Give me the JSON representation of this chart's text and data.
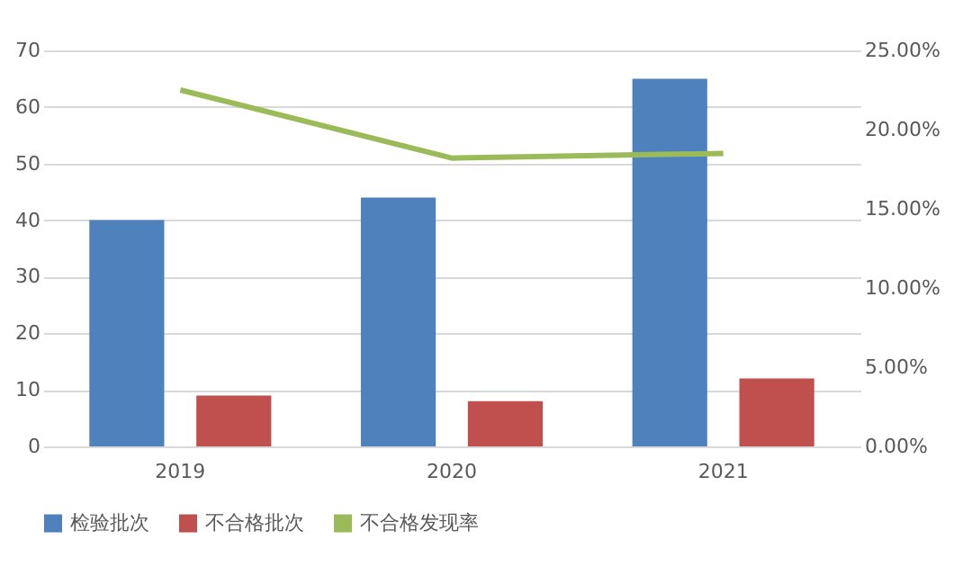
{
  "chart_data": {
    "type": "bar",
    "categories": [
      "2019",
      "2020",
      "2021"
    ],
    "series": [
      {
        "name": "检验批次",
        "color": "#4f81bd",
        "values": [
          40,
          44,
          65
        ]
      },
      {
        "name": "不合格批次",
        "color": "#c0504d",
        "values": [
          9,
          8,
          12
        ]
      },
      {
        "name": "不合格发现率",
        "color": "#9bbb59",
        "type": "line",
        "axis": "y2",
        "values": [
          22.5,
          18.2,
          18.5
        ]
      }
    ],
    "ylim": [
      0,
      70
    ],
    "yticks": [
      0,
      10,
      20,
      30,
      40,
      50,
      60,
      70
    ],
    "y2lim": [
      0,
      25
    ],
    "y2ticks": [
      {
        "value": 0,
        "label": "0.00%"
      },
      {
        "value": 5,
        "label": "5.00%"
      },
      {
        "value": 10,
        "label": "10.00%"
      },
      {
        "value": 15,
        "label": "15.00%"
      },
      {
        "value": 20,
        "label": "20.00%"
      },
      {
        "value": 25,
        "label": "25.00%"
      }
    ],
    "grid": "y",
    "legend": "bottom",
    "marker": "none",
    "line_style": "solid"
  }
}
